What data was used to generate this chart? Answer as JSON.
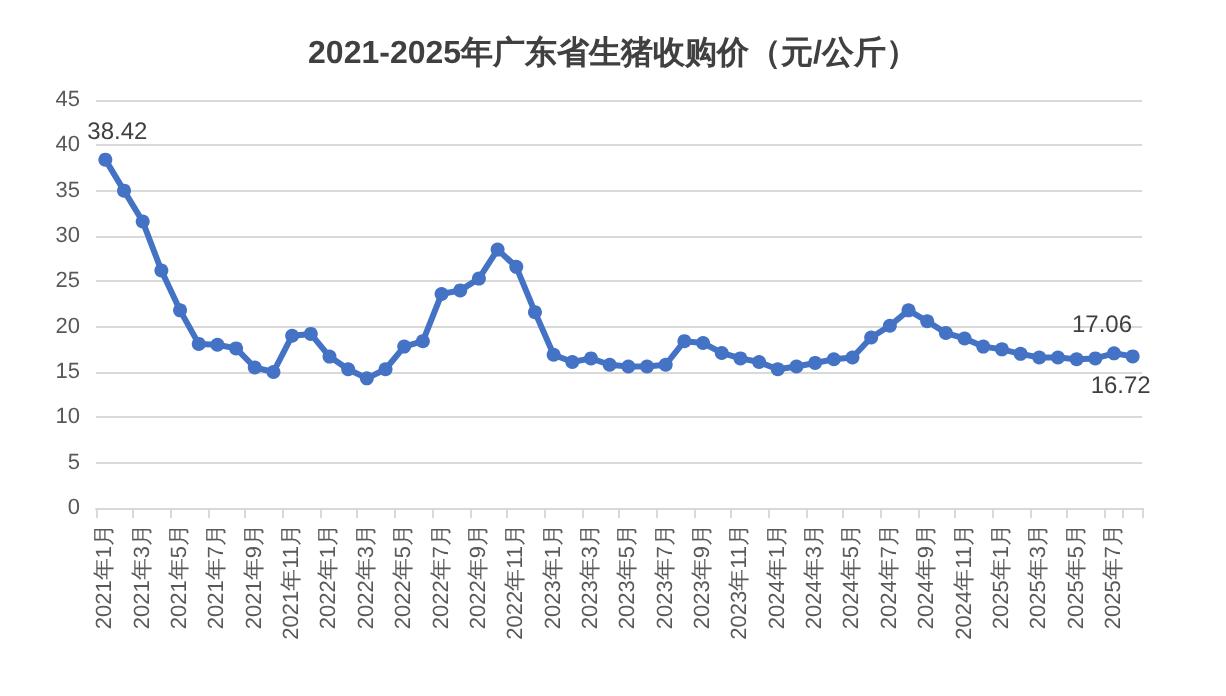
{
  "chart_data": {
    "type": "line",
    "title": "2021-2025年广东省生猪收购价（元/公斤）",
    "categories": [
      "2021年1月",
      null,
      "2021年3月",
      null,
      "2021年5月",
      null,
      "2021年7月",
      null,
      "2021年9月",
      null,
      "2021年11月",
      null,
      "2022年1月",
      null,
      "2022年3月",
      null,
      "2022年5月",
      null,
      "2022年7月",
      null,
      "2022年9月",
      null,
      "2022年11月",
      null,
      "2023年1月",
      null,
      "2023年3月",
      null,
      "2023年5月",
      null,
      "2023年7月",
      null,
      "2023年9月",
      null,
      "2023年11月",
      null,
      "2024年1月",
      null,
      "2024年3月",
      null,
      "2024年5月",
      null,
      "2024年7月",
      null,
      "2024年9月",
      null,
      "2024年11月",
      null,
      "2025年1月",
      null,
      "2025年3月",
      null,
      "2025年5月",
      null,
      "2025年7月",
      null
    ],
    "series": [
      {
        "color": "#4472c4",
        "values": [
          38.42,
          35,
          31.6,
          26.2,
          21.8,
          18.1,
          18.0,
          17.6,
          15.5,
          15.0,
          19.0,
          19.2,
          16.7,
          15.3,
          14.3,
          15.3,
          17.8,
          18.4,
          23.6,
          24.0,
          25.3,
          28.5,
          26.6,
          21.6,
          16.9,
          16.1,
          16.5,
          15.8,
          15.6,
          15.6,
          15.8,
          18.4,
          18.2,
          17.1,
          16.5,
          16.1,
          15.3,
          15.6,
          16.0,
          16.4,
          16.6,
          18.8,
          20.1,
          21.8,
          20.6,
          19.3,
          18.7,
          17.8,
          17.5,
          17.0,
          16.6,
          16.6,
          16.4,
          16.5,
          17.06,
          16.72
        ],
        "value_labels": [
          "38.42",
          null,
          null,
          null,
          null,
          null,
          null,
          null,
          null,
          null,
          null,
          null,
          null,
          null,
          null,
          null,
          null,
          null,
          null,
          null,
          null,
          null,
          null,
          null,
          null,
          null,
          null,
          null,
          null,
          null,
          null,
          null,
          null,
          null,
          null,
          null,
          null,
          null,
          null,
          null,
          null,
          null,
          null,
          null,
          null,
          null,
          null,
          null,
          null,
          null,
          null,
          null,
          null,
          null,
          "17.06",
          "16.72"
        ]
      }
    ],
    "ylim": [
      0,
      45
    ],
    "yticks": [
      0,
      5,
      10,
      15,
      20,
      25,
      30,
      35,
      40,
      45
    ],
    "grid": "y",
    "marker": "circle",
    "line_style": "solid"
  }
}
